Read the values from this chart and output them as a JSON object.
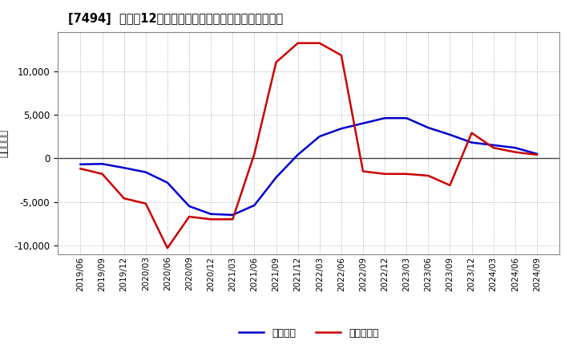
{
  "title": "[7494]  利益だ12か月移動合計の対前年同期増減額の推移",
  "ylabel": "（百万円）",
  "x_labels": [
    "2019/06",
    "2019/09",
    "2019/12",
    "2020/03",
    "2020/06",
    "2020/09",
    "2020/12",
    "2021/03",
    "2021/06",
    "2021/09",
    "2021/12",
    "2022/03",
    "2022/06",
    "2022/09",
    "2022/12",
    "2023/03",
    "2023/06",
    "2023/09",
    "2023/12",
    "2024/03",
    "2024/06",
    "2024/09"
  ],
  "keijo_rieki": [
    -700,
    -650,
    -1100,
    -1600,
    -2800,
    -5500,
    -6400,
    -6500,
    -5400,
    -2200,
    400,
    2500,
    3400,
    4000,
    4600,
    4600,
    3500,
    2700,
    1800,
    1500,
    1200,
    500
  ],
  "touki_jun_rieki": [
    -1200,
    -1800,
    -4600,
    -5200,
    -10300,
    -6700,
    -7000,
    -7000,
    500,
    11000,
    13200,
    13200,
    11800,
    -1500,
    -1800,
    -1800,
    -2000,
    -3100,
    2900,
    1200,
    700,
    400
  ],
  "keijo_color": "#0000cc",
  "touki_color": "#cc0000",
  "background_color": "#ffffff",
  "grid_color": "#aaaaaa",
  "ylim": [
    -11000,
    14500
  ],
  "yticks": [
    -10000,
    -5000,
    0,
    5000,
    10000
  ],
  "legend_keijo": "経常利益",
  "legend_touki": "当期純利益"
}
